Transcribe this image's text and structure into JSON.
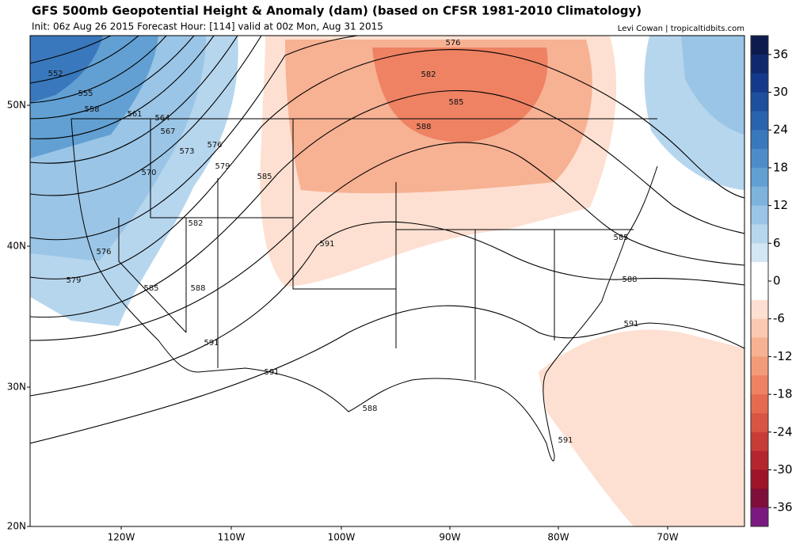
{
  "header": {
    "title": "GFS 500mb Geopotential Height & Anomaly (dam) (based on CFSR 1981-2010 Climatology)",
    "subtitle": "Init: 06z Aug 26 2015   Forecast Hour: [114]   valid at 00z Mon, Aug 31 2015",
    "credit": "Levi Cowan | tropicaltidbits.com"
  },
  "map": {
    "lat_labels": [
      "50N",
      "40N",
      "30N",
      "20N"
    ],
    "lon_labels": [
      "120W",
      "110W",
      "100W",
      "90W",
      "80W",
      "70W"
    ],
    "contour_labels": [
      "552",
      "555",
      "558",
      "561",
      "564",
      "567",
      "573",
      "576",
      "570",
      "579",
      "585",
      "582",
      "576",
      "579",
      "585",
      "588",
      "591",
      "591",
      "591",
      "588",
      "576",
      "582",
      "585",
      "588",
      "585",
      "588",
      "591",
      "591"
    ]
  },
  "colorbar": {
    "range": [
      -39,
      39
    ],
    "ticks": [
      36,
      30,
      24,
      18,
      12,
      6,
      0,
      -6,
      -12,
      -18,
      -24,
      -30,
      -36
    ],
    "colors": [
      "#0c1a4e",
      "#10286e",
      "#15398a",
      "#1d4f9c",
      "#2a63ad",
      "#3a78bd",
      "#4d8cc8",
      "#62a0d3",
      "#7db3dd",
      "#9ac5e6",
      "#b6d6ee",
      "#d3e6f4",
      "#ffffff",
      "#ffffff",
      "#fde0d2",
      "#fbc9b0",
      "#f7b193",
      "#f39a79",
      "#ee8263",
      "#e56a50",
      "#d85443",
      "#c83c37",
      "#b5252e",
      "#9e1528",
      "#7e0f3a",
      "#7a1a80"
    ]
  }
}
